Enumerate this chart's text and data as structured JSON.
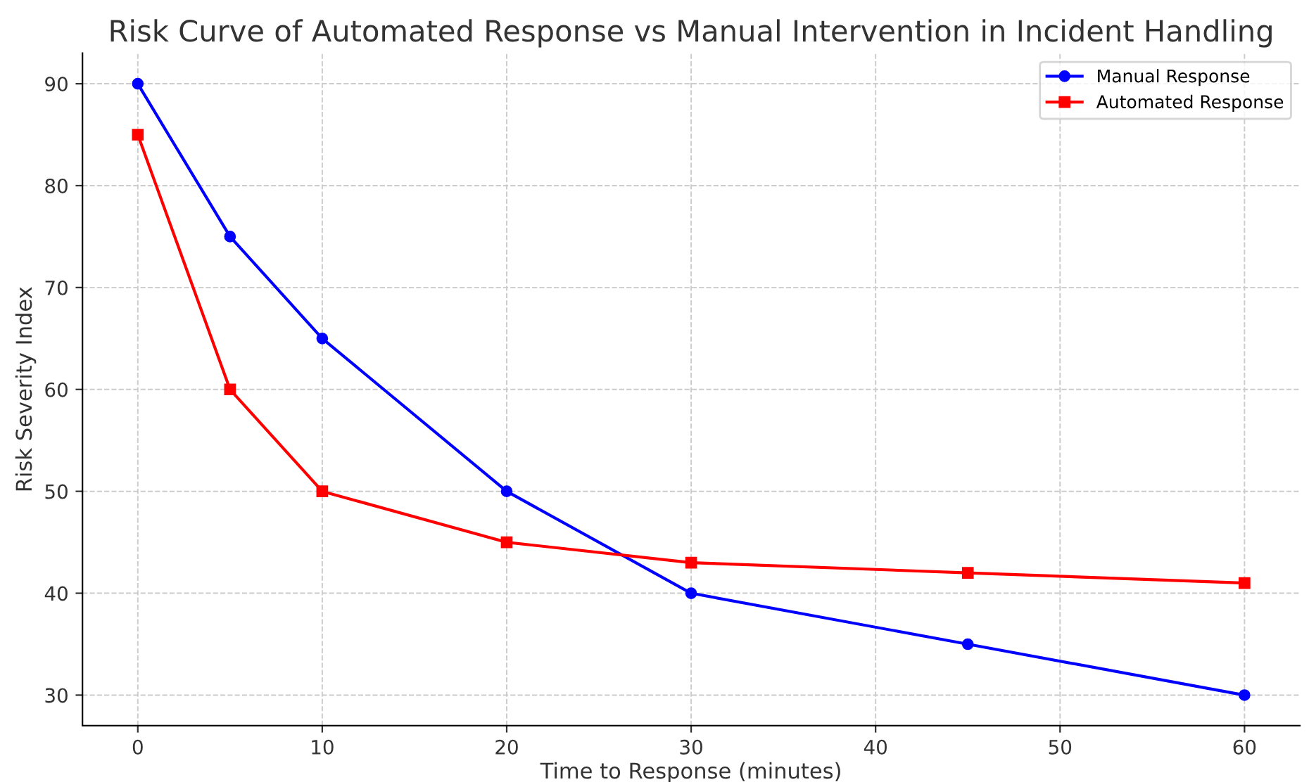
{
  "chart_data": {
    "type": "line",
    "title": "Risk Curve of Automated Response vs Manual Intervention in Incident Handling",
    "xlabel": "Time to Response (minutes)",
    "ylabel": "Risk Severity Index",
    "x": [
      0,
      5,
      10,
      20,
      30,
      45,
      60
    ],
    "series": [
      {
        "name": "Manual Response",
        "color": "#0000ff",
        "marker": "circle",
        "values": [
          90,
          75,
          65,
          50,
          40,
          35,
          30
        ]
      },
      {
        "name": "Automated Response",
        "color": "#ff0000",
        "marker": "square",
        "values": [
          85,
          60,
          50,
          45,
          43,
          42,
          41
        ]
      }
    ],
    "xlim": [
      -3,
      63
    ],
    "ylim": [
      27,
      93
    ],
    "xticks": [
      0,
      10,
      20,
      30,
      40,
      50,
      60
    ],
    "yticks": [
      30,
      40,
      50,
      60,
      70,
      80,
      90
    ],
    "grid": true,
    "legend": "top right",
    "line_style": "solid"
  }
}
